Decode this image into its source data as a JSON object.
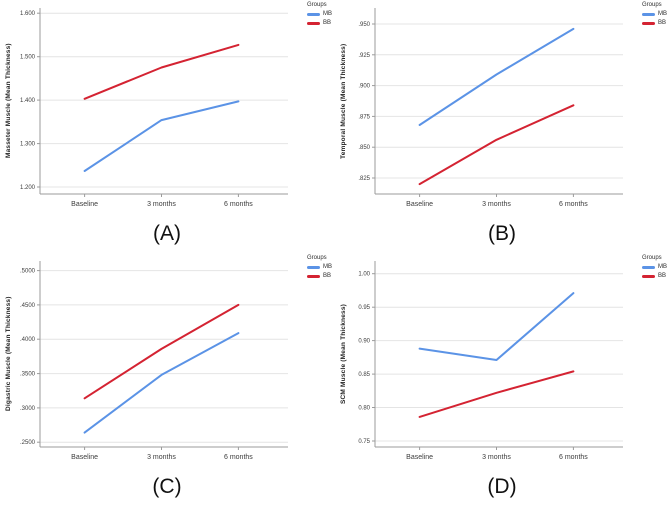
{
  "legend_title": "Groups",
  "colors": {
    "mb_blue": "#5b93e6",
    "bb_red": "#d42332",
    "grid": "#e4e4e4",
    "axis": "#9b9b9b",
    "tick_text": "#3c3c3c"
  },
  "chart_data": [
    {
      "type": "line",
      "panel_label": "(A)",
      "ylabel": "Masseter Muscle (Mean Thickness)",
      "xlabel": "",
      "categories": [
        "Baseline",
        "3 months",
        "6 months"
      ],
      "series": [
        {
          "name": "MB",
          "color": "#5b93e6",
          "values": [
            1.237,
            1.354,
            1.397
          ]
        },
        {
          "name": "BB",
          "color": "#d42332",
          "values": [
            1.403,
            1.475,
            1.527
          ]
        }
      ],
      "ylim": [
        1.184,
        1.612
      ],
      "ytick_values": [
        1.2,
        1.3,
        1.4,
        1.5,
        1.6
      ],
      "ytick_labels": [
        "1.200",
        "1.300",
        "1.400",
        "1.500",
        "1.600"
      ],
      "grid": true,
      "legend_position": "top-right"
    },
    {
      "type": "line",
      "panel_label": "(B)",
      "ylabel": "Temporal Muscle (Mean Thickness)",
      "xlabel": "",
      "categories": [
        "Baseline",
        "3 months",
        "6 months"
      ],
      "series": [
        {
          "name": "MB",
          "color": "#5b93e6",
          "values": [
            0.868,
            0.909,
            0.946
          ]
        },
        {
          "name": "BB",
          "color": "#d42332",
          "values": [
            0.82,
            0.856,
            0.884
          ]
        }
      ],
      "ylim": [
        0.812,
        0.963
      ],
      "ytick_values": [
        0.825,
        0.85,
        0.875,
        0.9,
        0.925,
        0.95
      ],
      "ytick_labels": [
        ".825",
        ".850",
        ".875",
        ".900",
        ".925",
        ".950"
      ],
      "grid": true,
      "legend_position": "top-right"
    },
    {
      "type": "line",
      "panel_label": "(C)",
      "ylabel": "Digastric Muscle (Mean Thickness)",
      "xlabel": "",
      "categories": [
        "Baseline",
        "3 months",
        "6 months"
      ],
      "series": [
        {
          "name": "MB",
          "color": "#5b93e6",
          "values": [
            0.264,
            0.348,
            0.409
          ]
        },
        {
          "name": "BB",
          "color": "#d42332",
          "values": [
            0.314,
            0.386,
            0.45
          ]
        }
      ],
      "ylim": [
        0.243,
        0.514
      ],
      "ytick_values": [
        0.25,
        0.3,
        0.35,
        0.4,
        0.45,
        0.5
      ],
      "ytick_labels": [
        ".2500",
        ".3000",
        ".3500",
        ".4000",
        ".4500",
        ".5000"
      ],
      "grid": true,
      "legend_position": "top-right"
    },
    {
      "type": "line",
      "panel_label": "(D)",
      "ylabel": "SCM Muscle (Mean Thickness)",
      "xlabel": "",
      "categories": [
        "Baseline",
        "3 months",
        "6 months"
      ],
      "series": [
        {
          "name": "MB",
          "color": "#5b93e6",
          "values": [
            0.888,
            0.871,
            0.971
          ]
        },
        {
          "name": "BB",
          "color": "#d42332",
          "values": [
            0.786,
            0.822,
            0.854
          ]
        }
      ],
      "ylim": [
        0.741,
        1.019
      ],
      "ytick_values": [
        0.75,
        0.8,
        0.85,
        0.9,
        0.95,
        1.0
      ],
      "ytick_labels": [
        "0.75",
        "0.80",
        "0.85",
        "0.90",
        "0.95",
        "1.00"
      ],
      "grid": true,
      "legend_position": "top-right"
    }
  ]
}
